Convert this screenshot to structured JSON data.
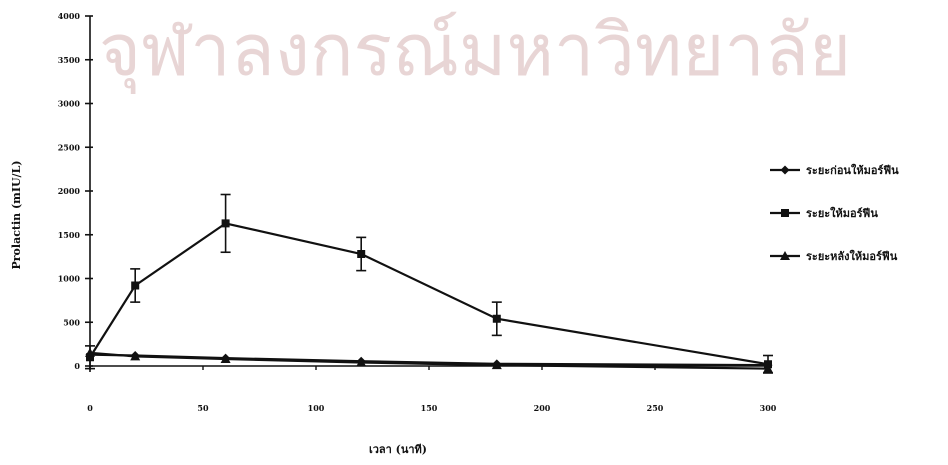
{
  "chart_data": {
    "type": "line",
    "title": "",
    "xlabel": "เวลา (นาที)",
    "ylabel": "Prolactin (mIU/L)",
    "xlim": [
      0,
      300
    ],
    "ylim": [
      0,
      4000
    ],
    "x_ticks": [
      "0",
      "50",
      "100",
      "150",
      "200",
      "250",
      "300"
    ],
    "y_ticks": [
      "0",
      "500",
      "1000",
      "1500",
      "2000",
      "2500",
      "3000",
      "3500",
      "4000"
    ],
    "grid": false,
    "legend_position": "right",
    "watermark": "จุฬาลงกรณ์มหาวิทยาลัย",
    "series": [
      {
        "name": "ระยะก่อนให้มอร์ฟีน",
        "marker": "diamond",
        "x": [
          0,
          20,
          60,
          120,
          180,
          300
        ],
        "y": [
          130,
          120,
          90,
          55,
          25,
          10
        ]
      },
      {
        "name": "ระยะให้มอร์ฟีน",
        "marker": "square",
        "x": [
          0,
          20,
          60,
          120,
          180,
          300
        ],
        "y": [
          100,
          920,
          1630,
          1280,
          540,
          20
        ],
        "error": [
          130,
          190,
          330,
          190,
          190,
          100
        ]
      },
      {
        "name": "ระยะหลังให้มอร์ฟีน",
        "marker": "triangle",
        "x": [
          0,
          20,
          60,
          120,
          180,
          300
        ],
        "y": [
          150,
          110,
          80,
          40,
          10,
          -30
        ]
      }
    ]
  }
}
